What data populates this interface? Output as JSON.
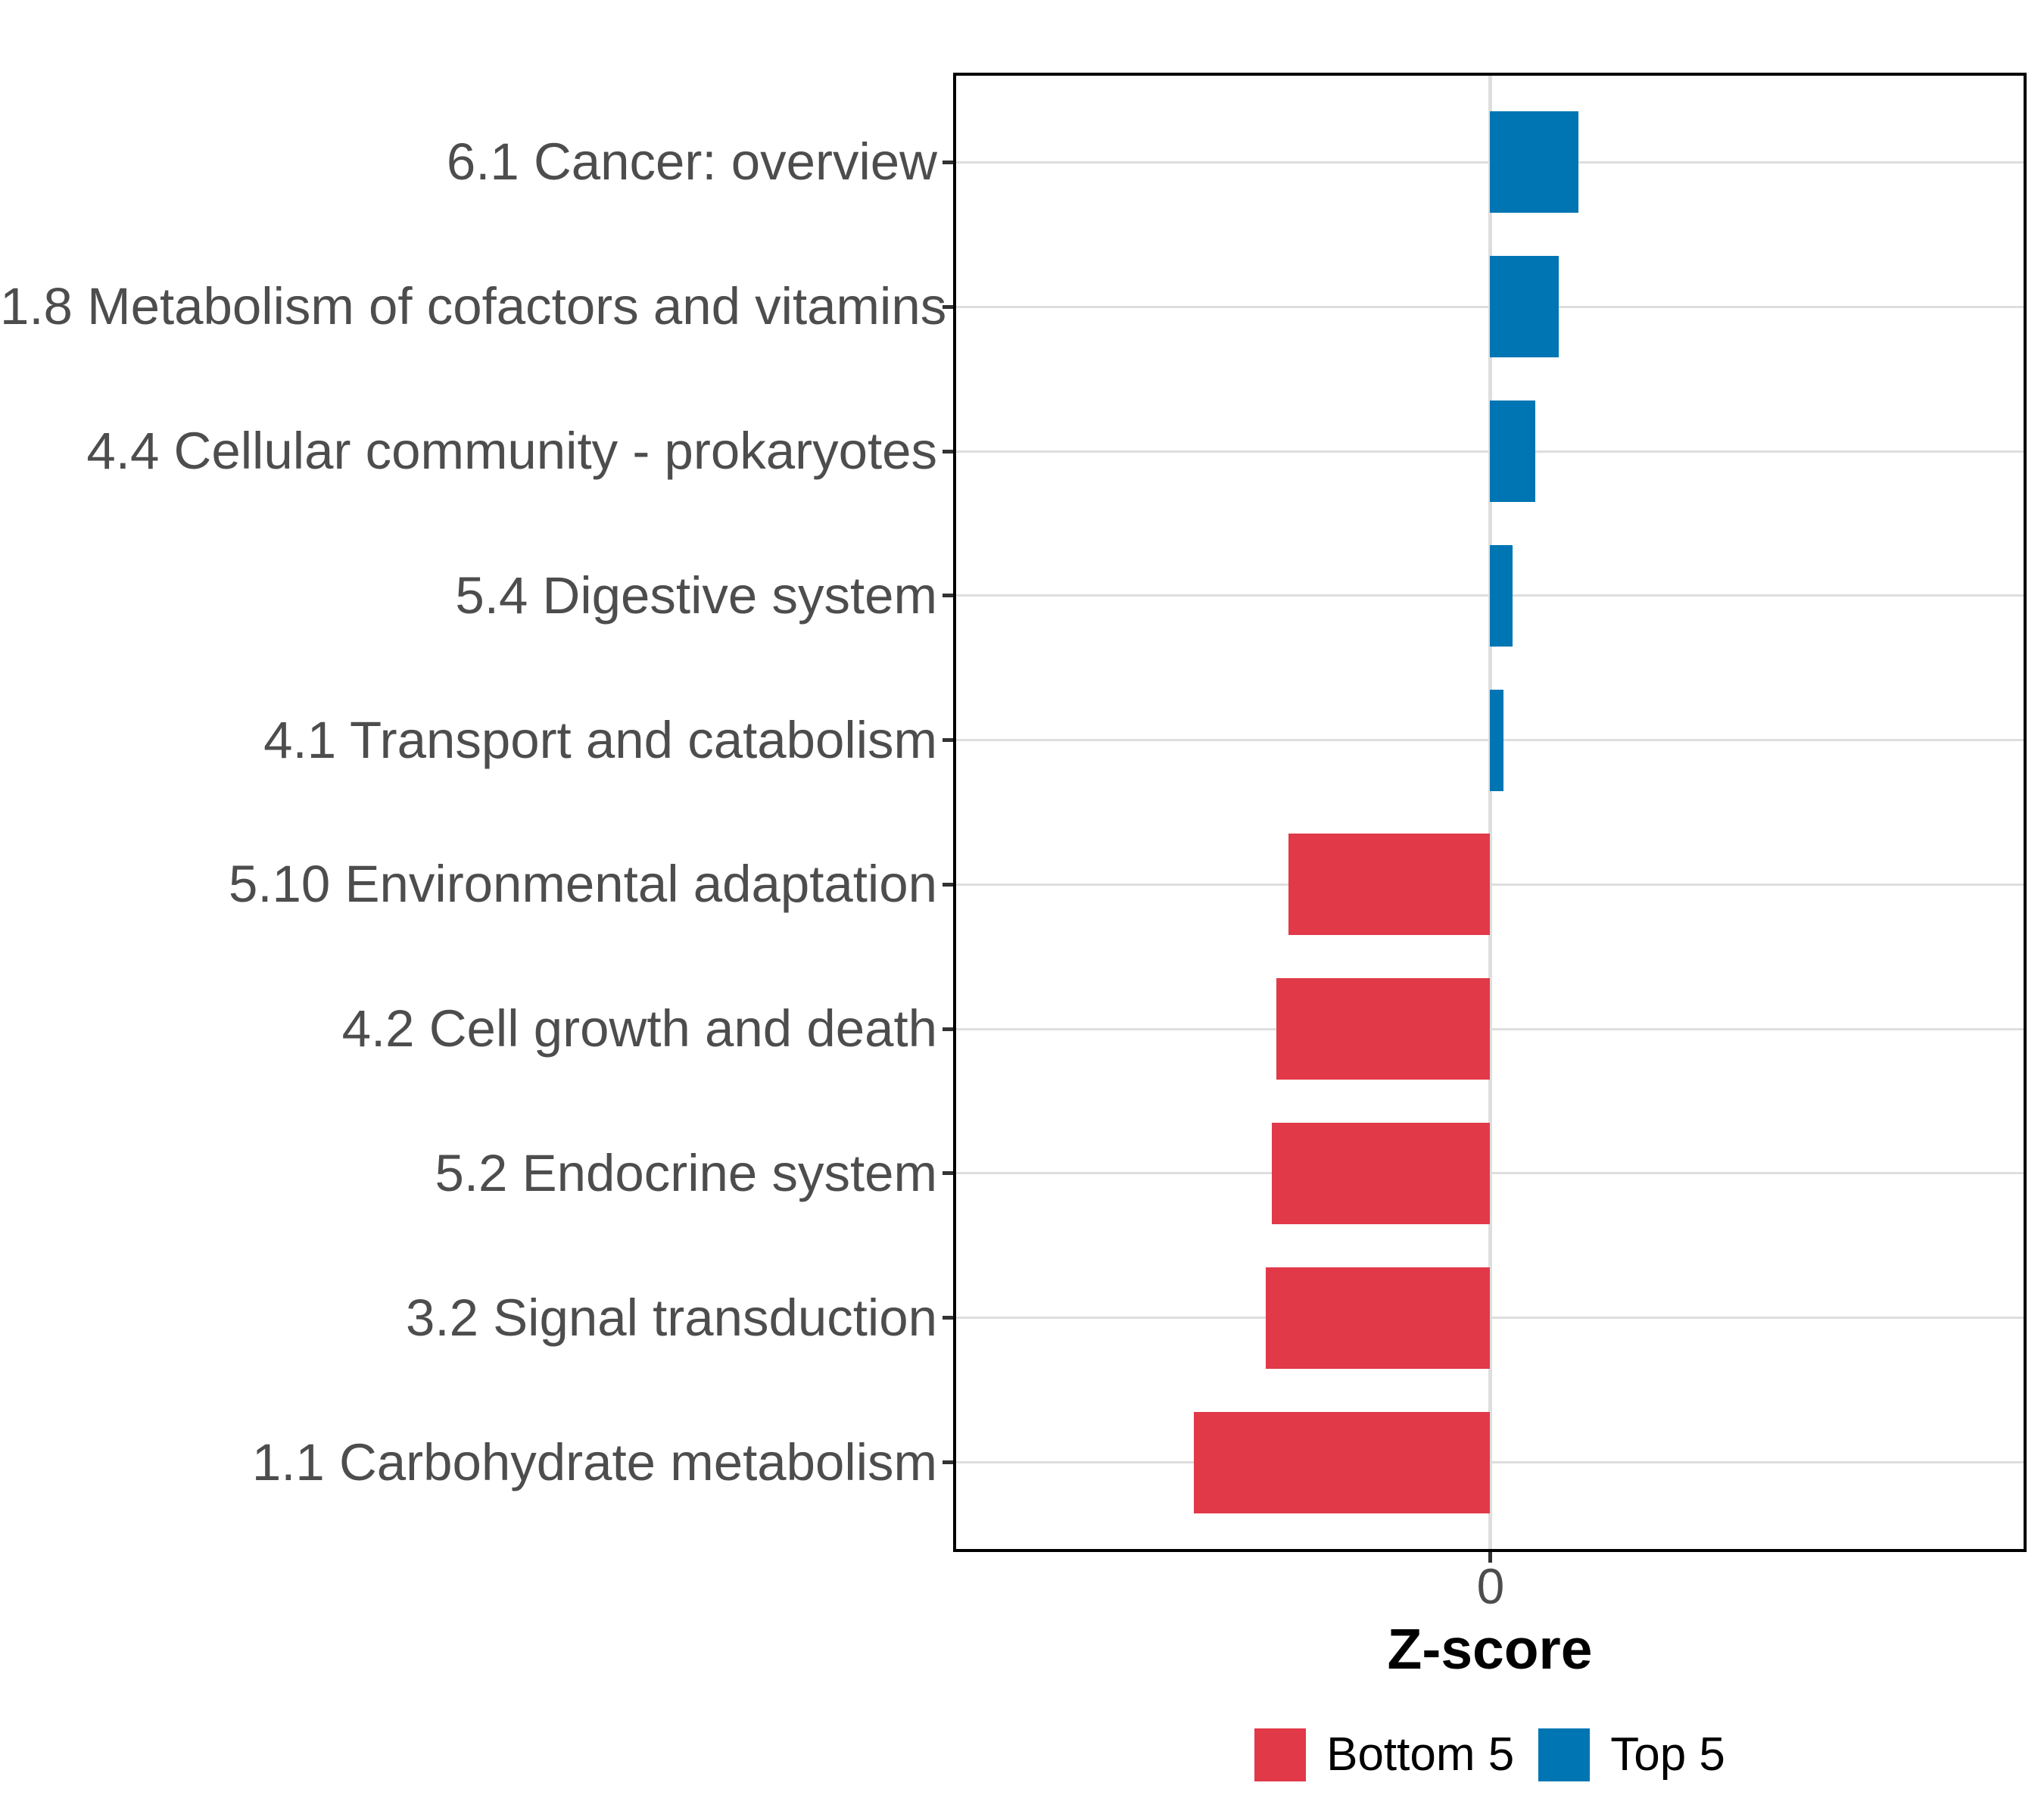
{
  "chart_data": {
    "type": "bar",
    "orientation": "horizontal",
    "title": "",
    "xlabel": "Z-score",
    "ylabel": "",
    "xlim": [
      -3.5,
      3.5
    ],
    "x_tick_values": [
      0
    ],
    "x_tick_label": "0",
    "grid": "major horizontal gridlines per category plus vertical gridline at 0; white panel with black border",
    "legend_position": "bottom",
    "categories": [
      "6.1 Cancer: overview",
      "1.8 Metabolism of cofactors and vitamins",
      "4.4 Cellular community - prokaryotes",
      "5.4 Digestive system",
      "4.1 Transport and catabolism",
      "5.10 Environmental adaptation",
      "4.2 Cell growth and death",
      "5.2 Endocrine system",
      "3.2 Signal transduction",
      "1.1 Carbohydrate metabolism"
    ],
    "values": [
      0.58,
      0.45,
      0.3,
      0.15,
      0.09,
      -1.32,
      -1.4,
      -1.43,
      -1.47,
      -1.94
    ],
    "groups": [
      "Top 5",
      "Top 5",
      "Top 5",
      "Top 5",
      "Top 5",
      "Bottom 5",
      "Bottom 5",
      "Bottom 5",
      "Bottom 5",
      "Bottom 5"
    ],
    "legend": {
      "entries": [
        {
          "label": "Bottom 5",
          "color": "#E13948"
        },
        {
          "label": "Top 5",
          "color": "#0075B3"
        }
      ]
    },
    "colors": {
      "bottom5_red": "#E13948",
      "top5_blue": "#0075B3",
      "gridline": "#DEDEDE",
      "axis_text": "#4D4D4D",
      "panel_border": "#000000"
    }
  }
}
